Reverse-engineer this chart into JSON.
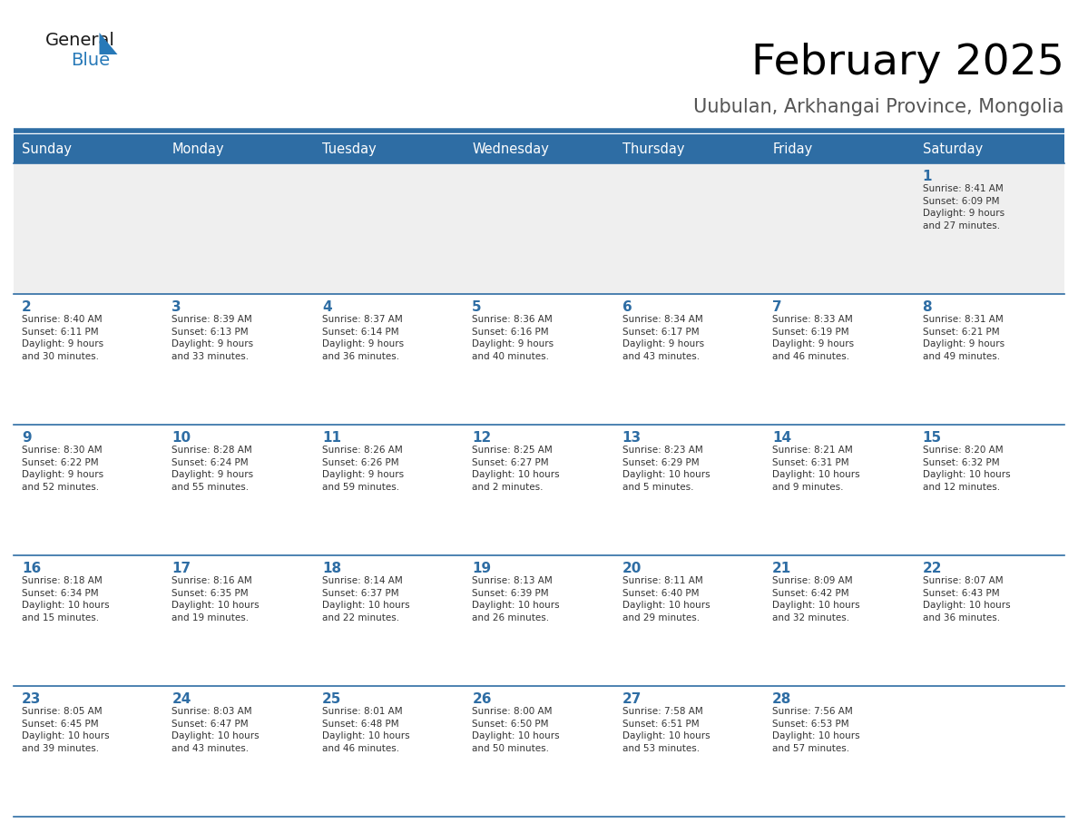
{
  "title": "February 2025",
  "subtitle": "Uubulan, Arkhangai Province, Mongolia",
  "header_bg": "#2E6DA4",
  "header_text": "#FFFFFF",
  "cell_bg_gray": "#EFEFEF",
  "cell_bg_white": "#FFFFFF",
  "day_number_color": "#2E6DA4",
  "text_color": "#333333",
  "line_color": "#2E6DA4",
  "days_of_week": [
    "Sunday",
    "Monday",
    "Tuesday",
    "Wednesday",
    "Thursday",
    "Friday",
    "Saturday"
  ],
  "weeks": [
    [
      {
        "day": null,
        "info": null
      },
      {
        "day": null,
        "info": null
      },
      {
        "day": null,
        "info": null
      },
      {
        "day": null,
        "info": null
      },
      {
        "day": null,
        "info": null
      },
      {
        "day": null,
        "info": null
      },
      {
        "day": 1,
        "info": "Sunrise: 8:41 AM\nSunset: 6:09 PM\nDaylight: 9 hours\nand 27 minutes."
      }
    ],
    [
      {
        "day": 2,
        "info": "Sunrise: 8:40 AM\nSunset: 6:11 PM\nDaylight: 9 hours\nand 30 minutes."
      },
      {
        "day": 3,
        "info": "Sunrise: 8:39 AM\nSunset: 6:13 PM\nDaylight: 9 hours\nand 33 minutes."
      },
      {
        "day": 4,
        "info": "Sunrise: 8:37 AM\nSunset: 6:14 PM\nDaylight: 9 hours\nand 36 minutes."
      },
      {
        "day": 5,
        "info": "Sunrise: 8:36 AM\nSunset: 6:16 PM\nDaylight: 9 hours\nand 40 minutes."
      },
      {
        "day": 6,
        "info": "Sunrise: 8:34 AM\nSunset: 6:17 PM\nDaylight: 9 hours\nand 43 minutes."
      },
      {
        "day": 7,
        "info": "Sunrise: 8:33 AM\nSunset: 6:19 PM\nDaylight: 9 hours\nand 46 minutes."
      },
      {
        "day": 8,
        "info": "Sunrise: 8:31 AM\nSunset: 6:21 PM\nDaylight: 9 hours\nand 49 minutes."
      }
    ],
    [
      {
        "day": 9,
        "info": "Sunrise: 8:30 AM\nSunset: 6:22 PM\nDaylight: 9 hours\nand 52 minutes."
      },
      {
        "day": 10,
        "info": "Sunrise: 8:28 AM\nSunset: 6:24 PM\nDaylight: 9 hours\nand 55 minutes."
      },
      {
        "day": 11,
        "info": "Sunrise: 8:26 AM\nSunset: 6:26 PM\nDaylight: 9 hours\nand 59 minutes."
      },
      {
        "day": 12,
        "info": "Sunrise: 8:25 AM\nSunset: 6:27 PM\nDaylight: 10 hours\nand 2 minutes."
      },
      {
        "day": 13,
        "info": "Sunrise: 8:23 AM\nSunset: 6:29 PM\nDaylight: 10 hours\nand 5 minutes."
      },
      {
        "day": 14,
        "info": "Sunrise: 8:21 AM\nSunset: 6:31 PM\nDaylight: 10 hours\nand 9 minutes."
      },
      {
        "day": 15,
        "info": "Sunrise: 8:20 AM\nSunset: 6:32 PM\nDaylight: 10 hours\nand 12 minutes."
      }
    ],
    [
      {
        "day": 16,
        "info": "Sunrise: 8:18 AM\nSunset: 6:34 PM\nDaylight: 10 hours\nand 15 minutes."
      },
      {
        "day": 17,
        "info": "Sunrise: 8:16 AM\nSunset: 6:35 PM\nDaylight: 10 hours\nand 19 minutes."
      },
      {
        "day": 18,
        "info": "Sunrise: 8:14 AM\nSunset: 6:37 PM\nDaylight: 10 hours\nand 22 minutes."
      },
      {
        "day": 19,
        "info": "Sunrise: 8:13 AM\nSunset: 6:39 PM\nDaylight: 10 hours\nand 26 minutes."
      },
      {
        "day": 20,
        "info": "Sunrise: 8:11 AM\nSunset: 6:40 PM\nDaylight: 10 hours\nand 29 minutes."
      },
      {
        "day": 21,
        "info": "Sunrise: 8:09 AM\nSunset: 6:42 PM\nDaylight: 10 hours\nand 32 minutes."
      },
      {
        "day": 22,
        "info": "Sunrise: 8:07 AM\nSunset: 6:43 PM\nDaylight: 10 hours\nand 36 minutes."
      }
    ],
    [
      {
        "day": 23,
        "info": "Sunrise: 8:05 AM\nSunset: 6:45 PM\nDaylight: 10 hours\nand 39 minutes."
      },
      {
        "day": 24,
        "info": "Sunrise: 8:03 AM\nSunset: 6:47 PM\nDaylight: 10 hours\nand 43 minutes."
      },
      {
        "day": 25,
        "info": "Sunrise: 8:01 AM\nSunset: 6:48 PM\nDaylight: 10 hours\nand 46 minutes."
      },
      {
        "day": 26,
        "info": "Sunrise: 8:00 AM\nSunset: 6:50 PM\nDaylight: 10 hours\nand 50 minutes."
      },
      {
        "day": 27,
        "info": "Sunrise: 7:58 AM\nSunset: 6:51 PM\nDaylight: 10 hours\nand 53 minutes."
      },
      {
        "day": 28,
        "info": "Sunrise: 7:56 AM\nSunset: 6:53 PM\nDaylight: 10 hours\nand 57 minutes."
      },
      {
        "day": null,
        "info": null
      }
    ]
  ]
}
